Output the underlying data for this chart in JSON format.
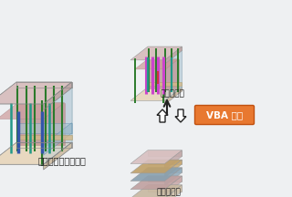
{
  "bg_color": "#eef0f2",
  "label_left": "標準モールドベース",
  "label_top_right": "穴部品配置",
  "label_bottom_right": "穴部品演算",
  "vba_label": "VBA 実行",
  "vba_bg": "#e87830",
  "vba_border": "#c05010",
  "arrow_color": "#ffffff",
  "arrow_border": "#222222",
  "top_face": "#d8c0c0",
  "front_face": "#c8b0b0",
  "side_face": "#c0a8a8",
  "top_plate_color": "#e8d8c0",
  "bot_plate_color": "#e8d8c0",
  "mid_pink": "#c89090",
  "mid_blue": "#a8c4d0",
  "mid_tan": "#d4b888",
  "pin_green": "#2a7a2a",
  "pin_blue": "#3355aa",
  "pin_purple": "#cc44cc",
  "pin_teal": "#229988",
  "pin_red": "#cc3322",
  "glass_color": "#b8ccd8",
  "inner_pink": "#c09090",
  "frame_color": "#c0b0b0"
}
